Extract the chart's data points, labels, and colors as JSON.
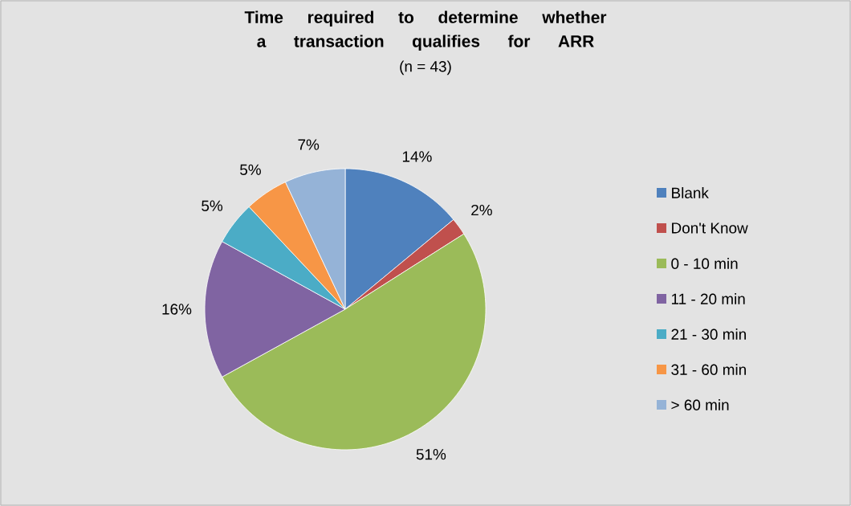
{
  "chart_data": {
    "type": "pie",
    "title": "Time required to determine whether a transaction qualifies for ARR",
    "subtitle": "(n = 43)",
    "categories": [
      "Blank",
      "Don't Know",
      "0 - 10 min",
      "11 - 20 min",
      "21 - 30 min",
      "31 - 60 min",
      "> 60 min"
    ],
    "values": [
      14,
      2,
      51,
      16,
      5,
      5,
      7
    ],
    "value_labels": [
      "14%",
      "2%",
      "51%",
      "16%",
      "5%",
      "5%",
      "7%"
    ],
    "colors": [
      "#4f81bd",
      "#c0504d",
      "#9bbb59",
      "#8064a2",
      "#4bacc6",
      "#f79646",
      "#95b3d7"
    ],
    "legend": "right"
  }
}
